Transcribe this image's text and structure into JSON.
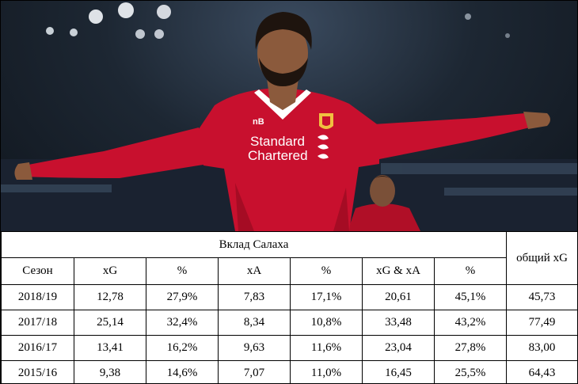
{
  "photo": {
    "jersey_sponsor_line1": "Standard",
    "jersey_sponsor_line2": "Chartered",
    "colors": {
      "jersey_red": "#c8102e",
      "jersey_dark": "#8e0a1e",
      "background": "#1d2733"
    }
  },
  "table": {
    "group_title": "Вклад Салаха",
    "total_header": "общий xG",
    "headers": [
      "Сезон",
      "xG",
      "%",
      "xA",
      "%",
      "xG & xA",
      "%"
    ],
    "rows": [
      {
        "season": "2018/19",
        "xg": "12,78",
        "xg_pct": "27,9%",
        "xa": "7,83",
        "xa_pct": "17,1%",
        "xgxa": "20,61",
        "xgxa_pct": "45,1%",
        "total_xg": "45,73"
      },
      {
        "season": "2017/18",
        "xg": "25,14",
        "xg_pct": "32,4%",
        "xa": "8,34",
        "xa_pct": "10,8%",
        "xgxa": "33,48",
        "xgxa_pct": "43,2%",
        "total_xg": "77,49"
      },
      {
        "season": "2016/17",
        "xg": "13,41",
        "xg_pct": "16,2%",
        "xa": "9,63",
        "xa_pct": "11,6%",
        "xgxa": "23,04",
        "xgxa_pct": "27,8%",
        "total_xg": "83,00"
      },
      {
        "season": "2015/16",
        "xg": "9,38",
        "xg_pct": "14,6%",
        "xa": "7,07",
        "xa_pct": "11,0%",
        "xgxa": "16,45",
        "xgxa_pct": "25,5%",
        "total_xg": "64,43"
      }
    ]
  }
}
